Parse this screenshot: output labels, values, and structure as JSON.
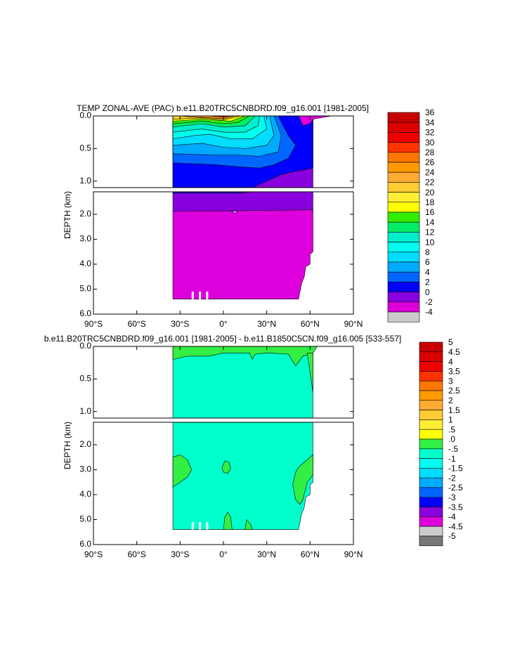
{
  "chart_data": [
    {
      "type": "contour",
      "title": "TEMP ZONAL-AVE (PAC) b.e11.B20TRC5CNBDRD.f09_g16.001 [1981-2005]",
      "ylabel": "DEPTH (km)",
      "xlim": [
        -90,
        90
      ],
      "xticks": [
        {
          "value": -90,
          "label": "90°S"
        },
        {
          "value": -60,
          "label": "60°S"
        },
        {
          "value": -30,
          "label": "30°S"
        },
        {
          "value": 0,
          "label": "0°"
        },
        {
          "value": 30,
          "label": "30°N"
        },
        {
          "value": 60,
          "label": "60°N"
        },
        {
          "value": 90,
          "label": "90°N"
        }
      ],
      "panels": [
        {
          "ylim": [
            0,
            1.1
          ],
          "yticks": [
            {
              "value": 0,
              "label": "0.0"
            },
            0.5,
            {
              "value": 1,
              "label": "1.0"
            }
          ]
        },
        {
          "ylim": [
            1.1,
            6
          ],
          "yticks": [
            {
              "value": 2,
              "label": "2.0"
            },
            {
              "value": 3,
              "label": "3.0"
            },
            {
              "value": 4,
              "label": "4.0"
            },
            {
              "value": 5,
              "label": "5.0"
            },
            {
              "value": 6,
              "label": "6.0"
            }
          ]
        }
      ],
      "levels": [
        36,
        34,
        32,
        30,
        28,
        26,
        24,
        22,
        20,
        18,
        16,
        14,
        12,
        10,
        8,
        6,
        4,
        2,
        0,
        -2,
        -4
      ],
      "colors": [
        "#c80000",
        "#dc0000",
        "#f00000",
        "#ff3300",
        "#ff7700",
        "#ff9900",
        "#ffaa33",
        "#ffcc33",
        "#ffee33",
        "#ffff00",
        "#33ee00",
        "#00ee66",
        "#00eecc",
        "#00ffee",
        "#00ddff",
        "#00aaff",
        "#0066ff",
        "#0000ff",
        "#8800dd",
        "#dd00dd",
        "#cccccc",
        "#777777"
      ]
    },
    {
      "type": "contour",
      "title": "b.e11.B20TRC5CNBDRD.f09_g16.001 [1981-2005] - b.e11.B1850C5CN.f09_g16.005 [533-557]",
      "ylabel": "DEPTH (km)",
      "xlim": [
        -90,
        90
      ],
      "xticks": [
        {
          "value": -90,
          "label": "90°S"
        },
        {
          "value": -60,
          "label": "60°S"
        },
        {
          "value": -30,
          "label": "30°S"
        },
        {
          "value": 0,
          "label": "0°"
        },
        {
          "value": 30,
          "label": "30°N"
        },
        {
          "value": 60,
          "label": "60°N"
        },
        {
          "value": 90,
          "label": "90°N"
        }
      ],
      "panels": [
        {
          "ylim": [
            0,
            1.1
          ],
          "yticks": [
            {
              "value": 0,
              "label": "0.0"
            },
            0.5,
            {
              "value": 1,
              "label": "1.0"
            }
          ]
        },
        {
          "ylim": [
            1.1,
            6
          ],
          "yticks": [
            {
              "value": 2,
              "label": "2.0"
            },
            {
              "value": 3,
              "label": "3.0"
            },
            {
              "value": 4,
              "label": "4.0"
            },
            {
              "value": 5,
              "label": "5.0"
            },
            {
              "value": 6,
              "label": "6.0"
            }
          ]
        }
      ],
      "levels": [
        5,
        4.5,
        4,
        3.5,
        3,
        2.5,
        2,
        1.5,
        1,
        {
          "value": 0.5,
          "label": ".5"
        },
        {
          "value": 0,
          "label": ".0"
        },
        {
          "value": -0.5,
          "label": "-.5"
        },
        -1,
        -1.5,
        -2,
        -2.5,
        -3,
        -3.5,
        -4,
        -4.5,
        -5
      ],
      "colors": [
        "#c80000",
        "#dc0000",
        "#f00000",
        "#ff3300",
        "#ff7700",
        "#ff9900",
        "#ffaa33",
        "#ffcc33",
        "#ffee33",
        "#ffff00",
        "#33ee44",
        "#00ffcc",
        "#00ffee",
        "#00ddff",
        "#00aaff",
        "#0066ff",
        "#0000ff",
        "#8800dd",
        "#dd00dd",
        "#cccccc",
        "#777777"
      ]
    }
  ]
}
